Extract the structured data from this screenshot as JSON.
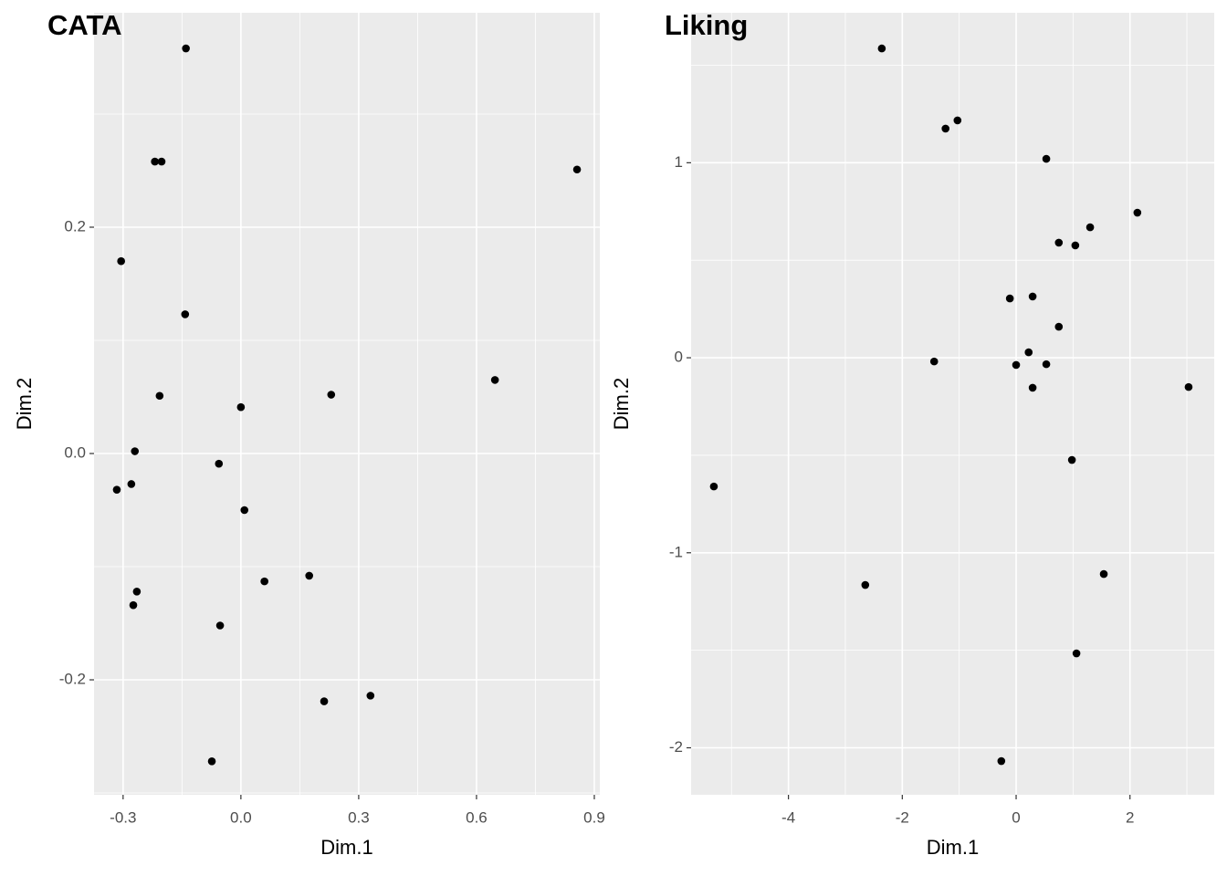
{
  "chart_data": [
    {
      "type": "scatter",
      "title": "CATA",
      "x_label": "Dim.1",
      "y_label": "Dim.2",
      "color": "#000000",
      "grid": true,
      "xlim": [
        -0.374,
        0.914
      ],
      "ylim": [
        -0.3016,
        0.3895
      ],
      "xticks": [
        -0.3,
        {
          "value": 0,
          "label": "0.0"
        },
        0.3,
        0.6,
        0.9
      ],
      "yticks": [
        -0.2,
        {
          "value": 0,
          "label": "0.0"
        },
        0.2
      ],
      "x": [
        -0.14,
        -0.219,
        -0.202,
        0.856,
        -0.305,
        -0.142,
        0.647,
        -0.207,
        0.23,
        0.0,
        -0.27,
        -0.316,
        -0.279,
        -0.056,
        0.009,
        -0.265,
        -0.274,
        0.06,
        0.174,
        -0.053,
        0.212,
        0.33,
        -0.074
      ],
      "values": [
        0.358,
        0.258,
        0.258,
        0.251,
        0.17,
        0.123,
        0.065,
        0.051,
        0.052,
        0.041,
        0.002,
        -0.032,
        -0.027,
        -0.009,
        -0.05,
        -0.122,
        -0.134,
        -0.113,
        -0.108,
        -0.152,
        -0.219,
        -0.214,
        -0.272
      ]
    },
    {
      "type": "scatter",
      "title": "Liking",
      "x_label": "Dim.1",
      "y_label": "Dim.2",
      "color": "#000000",
      "grid": true,
      "xlim": [
        -5.71,
        3.48
      ],
      "ylim": [
        -2.241,
        1.769
      ],
      "xticks": [
        -4,
        -2,
        0,
        2
      ],
      "yticks": [
        -2,
        -1,
        0,
        1
      ],
      "x": [
        -2.36,
        -1.24,
        -1.03,
        0.53,
        2.13,
        1.3,
        0.75,
        1.04,
        -0.11,
        0.29,
        0.75,
        0.22,
        -1.44,
        0.0,
        0.53,
        0.29,
        3.03,
        0.98,
        -5.31,
        -2.65,
        1.54,
        1.06,
        -0.26
      ],
      "values": [
        1.586,
        1.175,
        1.217,
        1.02,
        0.744,
        0.669,
        0.59,
        0.576,
        0.304,
        0.314,
        0.159,
        0.028,
        -0.019,
        -0.037,
        -0.033,
        -0.154,
        -0.15,
        -0.524,
        -0.66,
        -1.165,
        -1.109,
        -1.516,
        -2.068
      ]
    }
  ]
}
